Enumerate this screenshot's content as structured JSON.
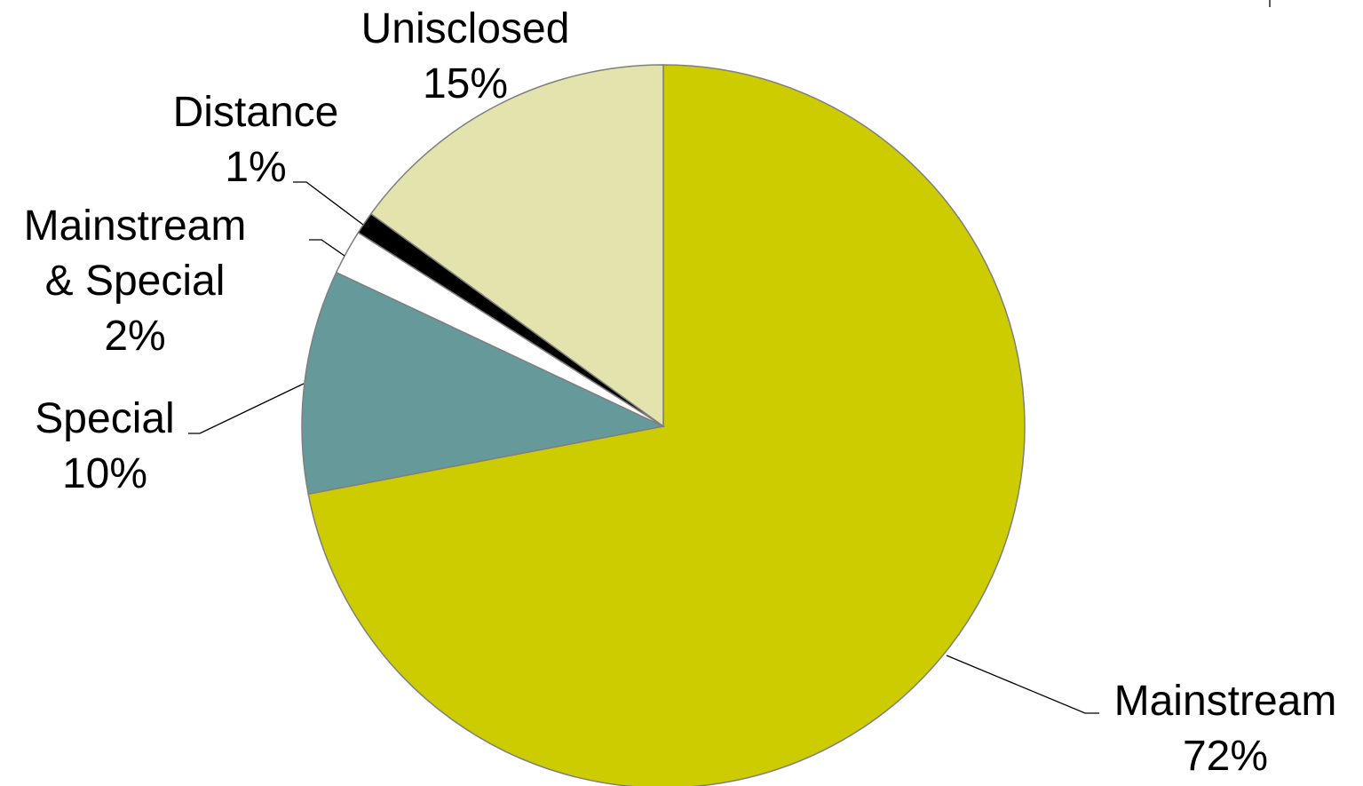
{
  "chart_data": {
    "type": "pie",
    "title": "",
    "start_angle_deg": 0,
    "direction": "clockwise",
    "slices": [
      {
        "name": "Mainstream",
        "value": 72,
        "label": [
          "Mainstream",
          "72%"
        ],
        "color": "#cccc00"
      },
      {
        "name": "Special",
        "value": 10,
        "label": [
          "Special",
          "10%"
        ],
        "color": "#669999"
      },
      {
        "name": "Mainstream & Special",
        "value": 2,
        "label": [
          "Mainstream",
          "& Special",
          "2%"
        ],
        "color": "#ffffff"
      },
      {
        "name": "Distance",
        "value": 1,
        "label": [
          "Distance",
          "1%"
        ],
        "color": "#000000"
      },
      {
        "name": "Unisclosed",
        "value": 15,
        "label": [
          "Unisclosed",
          "15%"
        ],
        "color": "#e3e3ad"
      }
    ]
  }
}
